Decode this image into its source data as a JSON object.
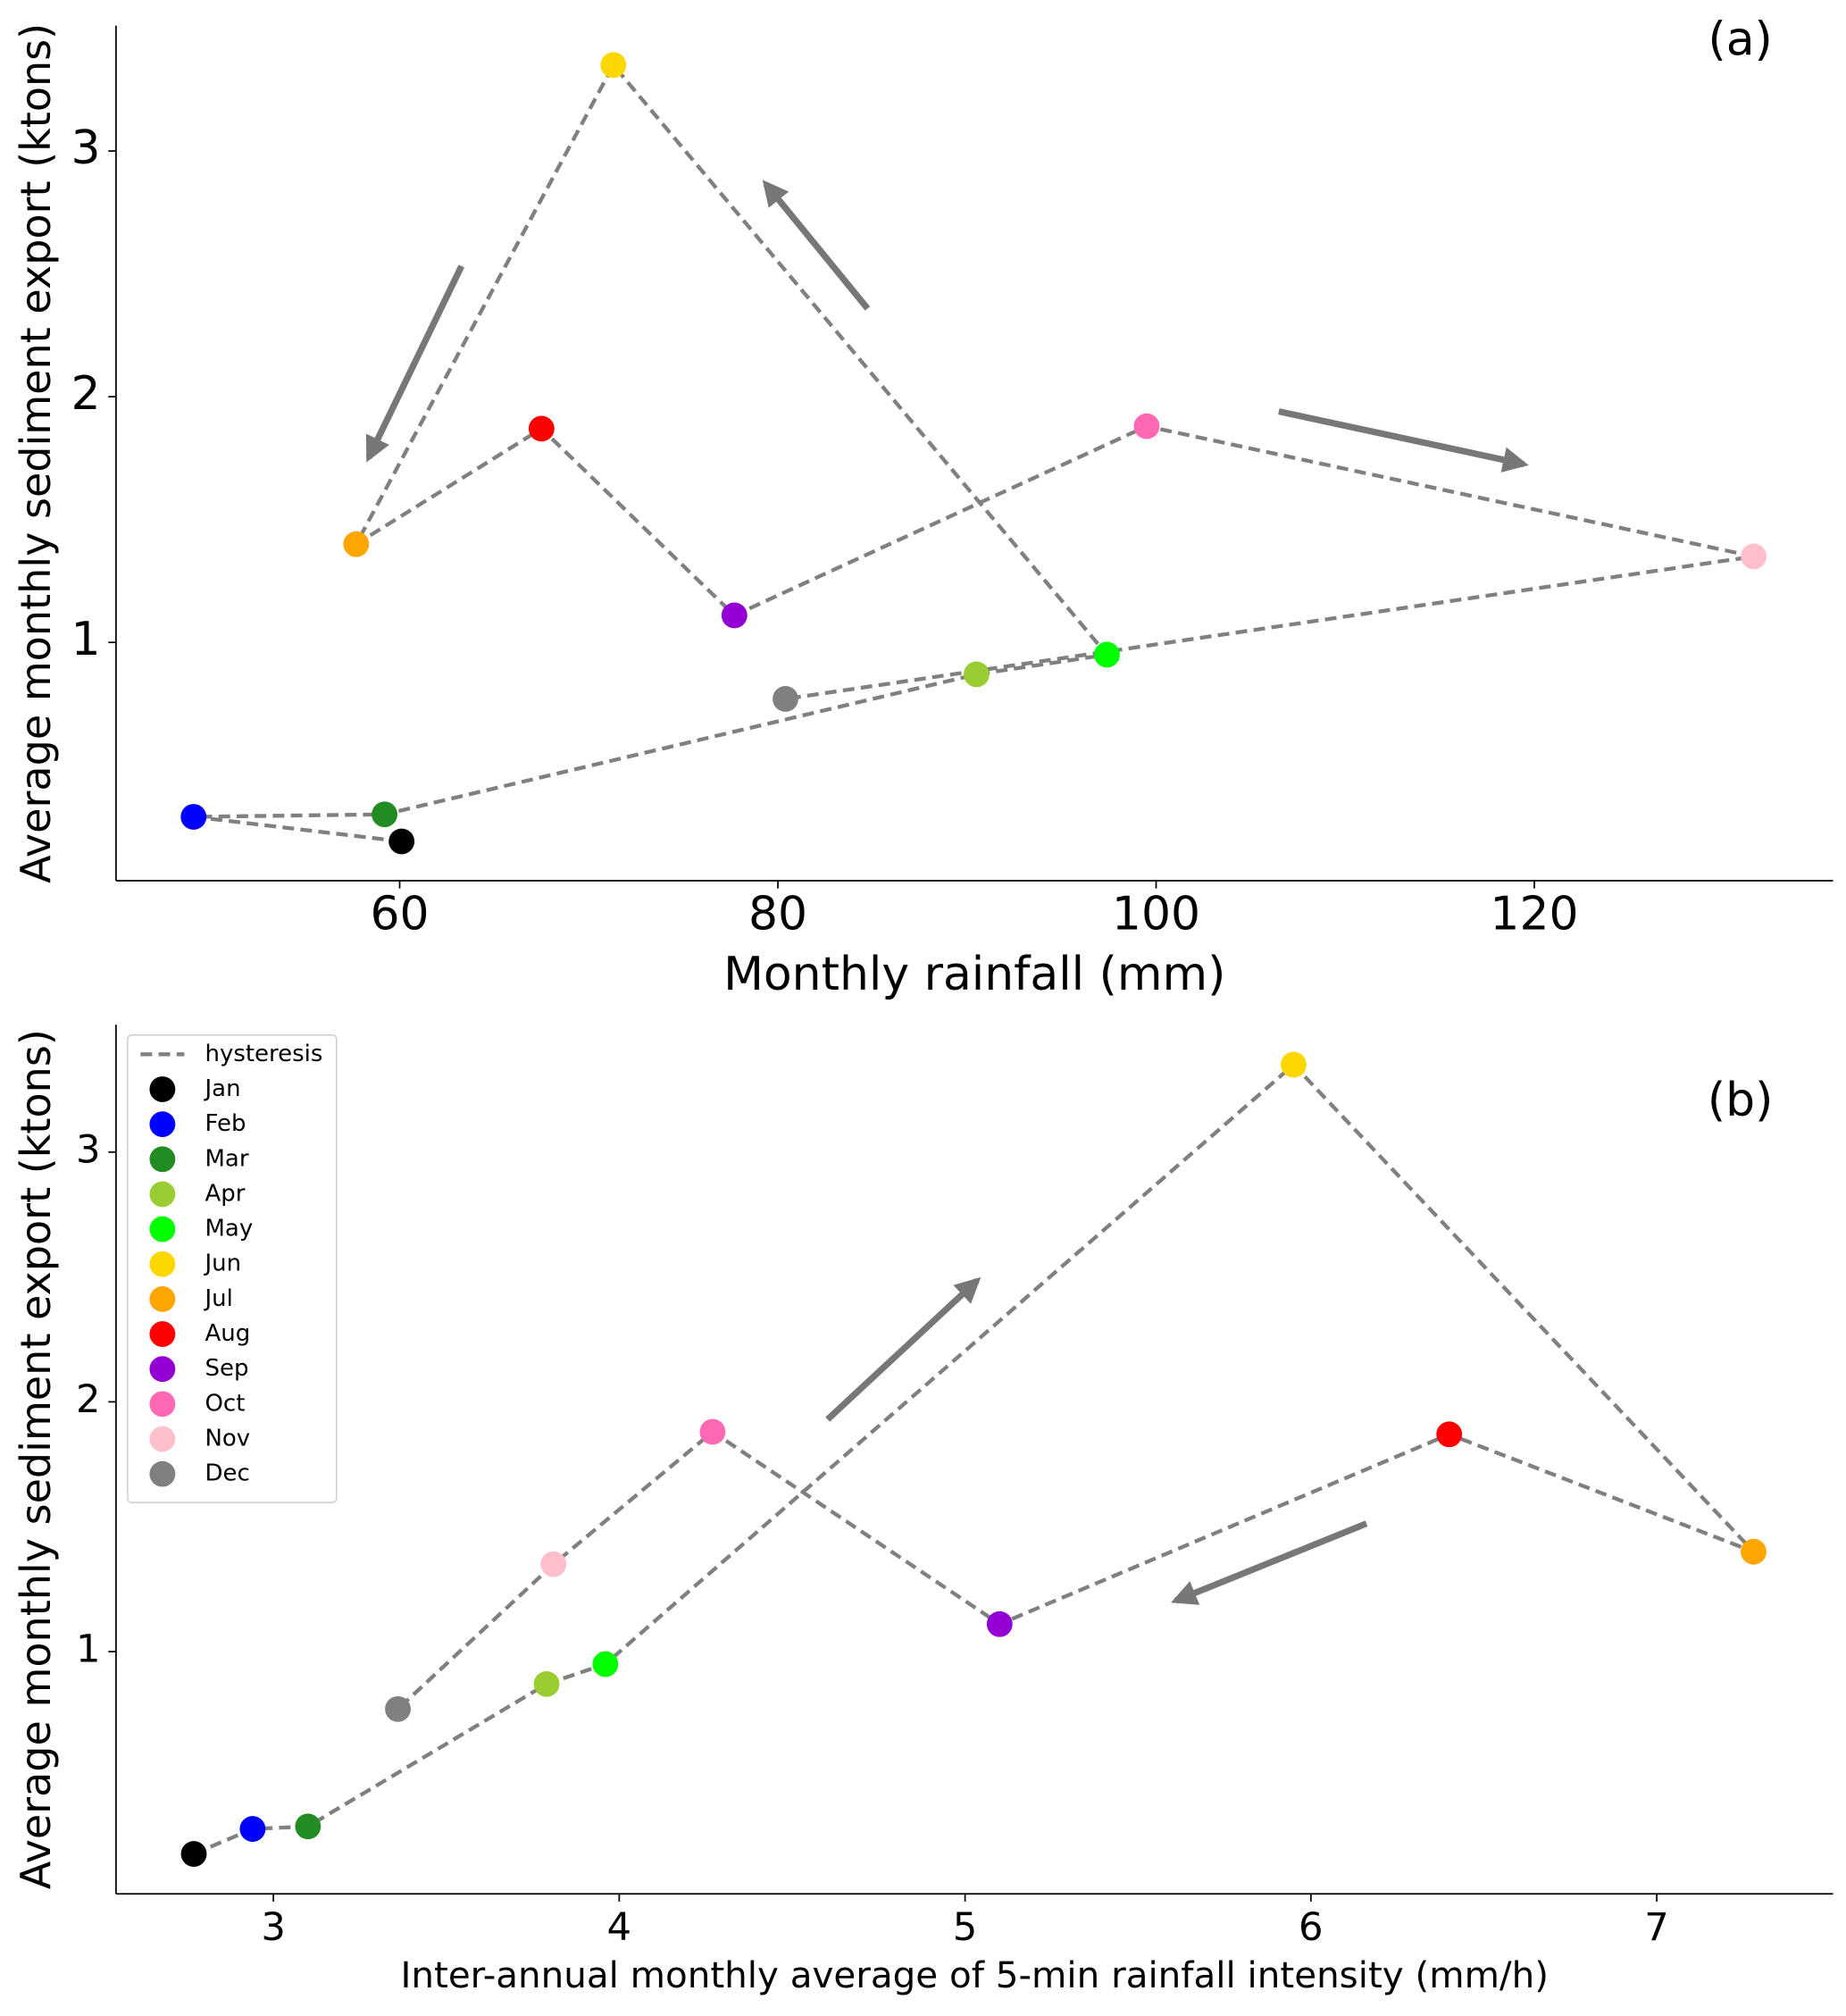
{
  "chart_data": [
    {
      "type": "scatter",
      "label": "(a)",
      "xlabel": "Monthly rainfall (mm)",
      "ylabel": "Average monthly sediment export (ktons)",
      "x": [
        60.1,
        49.1,
        59.2,
        90.5,
        97.4,
        71.3,
        57.7,
        67.5,
        77.7,
        99.5,
        131.6,
        80.4
      ],
      "y": [
        0.19,
        0.29,
        0.3,
        0.87,
        0.95,
        3.35,
        1.4,
        1.87,
        1.11,
        1.88,
        1.35,
        0.77
      ],
      "colors": [
        "#000000",
        "#0000ff",
        "#228b22",
        "#9acd32",
        "#00ff00",
        "#ffd700",
        "#ffa500",
        "#ff0000",
        "#9400d3",
        "#ff69b4",
        "#ffc0cb",
        "#808080"
      ],
      "line_color": "#808080",
      "xlim": [
        45.0,
        135.8
      ],
      "xticks": [
        60,
        80,
        100,
        120
      ],
      "ylim": [
        0.03,
        3.51
      ],
      "yticks": [
        1,
        2,
        3
      ]
    },
    {
      "type": "scatter",
      "label": "(b)",
      "xlabel": "Inter-annual monthly average of 5-min rainfall intensity (mm/h)",
      "ylabel": "Average monthly sediment export (ktons)",
      "x": [
        2.77,
        2.94,
        3.1,
        3.79,
        3.96,
        5.95,
        7.28,
        6.4,
        5.1,
        4.27,
        3.81,
        3.36
      ],
      "y": [
        0.19,
        0.29,
        0.3,
        0.87,
        0.95,
        3.35,
        1.4,
        1.87,
        1.11,
        1.88,
        1.35,
        0.77
      ],
      "names": [
        "Jan",
        "Feb",
        "Mar",
        "Apr",
        "May",
        "Jun",
        "Jul",
        "Aug",
        "Sep",
        "Oct",
        "Nov",
        "Dec"
      ],
      "colors": [
        "#000000",
        "#0000ff",
        "#228b22",
        "#9acd32",
        "#00ff00",
        "#ffd700",
        "#ffa500",
        "#ff0000",
        "#9400d3",
        "#ff69b4",
        "#ffc0cb",
        "#808080"
      ],
      "line_name": "hysteresis",
      "line_color": "#808080",
      "legend": "upper left",
      "xlim": [
        2.545,
        7.51
      ],
      "xticks": [
        3,
        4,
        5,
        6,
        7
      ],
      "ylim": [
        0.03,
        3.51
      ],
      "yticks": [
        1,
        2,
        3
      ]
    }
  ]
}
